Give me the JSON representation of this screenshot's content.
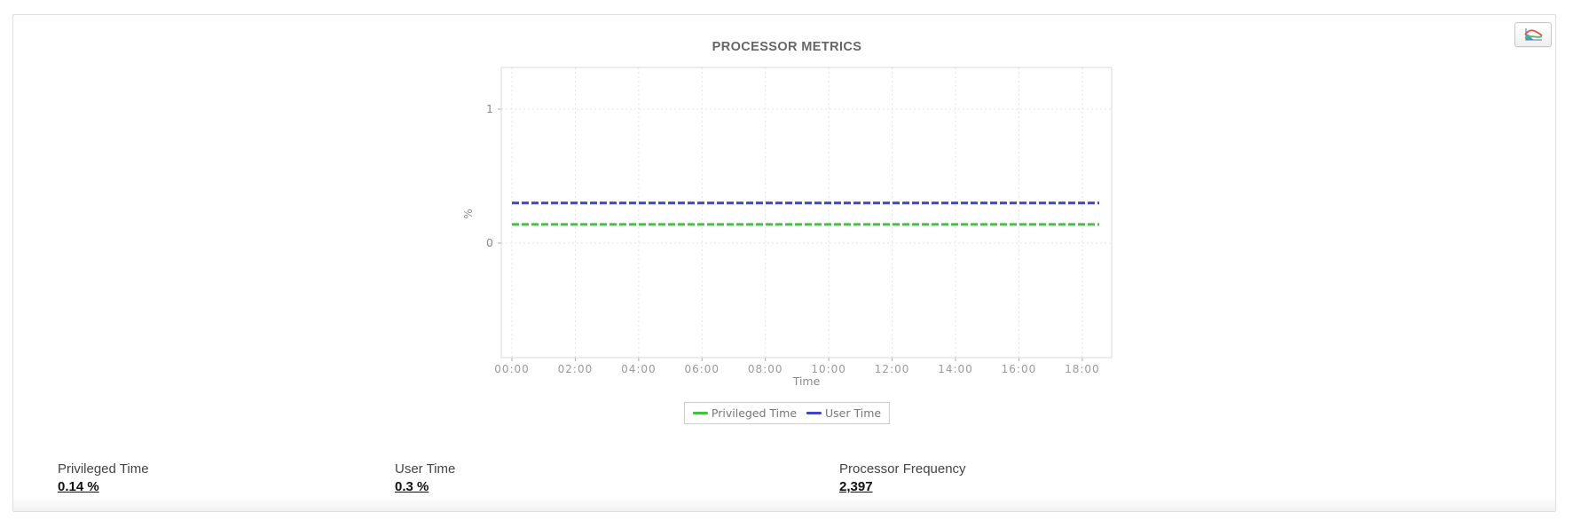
{
  "widget": {
    "title": "PROCESSOR METRICS",
    "footer_stats": [
      {
        "label": "Privileged Time",
        "value": "0.14 %"
      },
      {
        "label": "User Time",
        "value": "0.3 %"
      },
      {
        "label": "Processor Frequency",
        "value": "2,397"
      }
    ]
  },
  "toolbar": {
    "chart_button_icon": "multi-series-chart-icon"
  },
  "chart_data": {
    "type": "line",
    "title": "PROCESSOR METRICS",
    "xlabel": "Time",
    "ylabel": "%",
    "x_ticks": [
      "00:00",
      "02:00",
      "04:00",
      "06:00",
      "08:00",
      "10:00",
      "12:00",
      "14:00",
      "16:00",
      "18:00"
    ],
    "y_ticks": [
      0,
      1
    ],
    "ylim": [
      -0.85,
      1.3
    ],
    "x_range_hours": [
      0,
      18.5
    ],
    "grid": "dashed",
    "legend_position": "bottom",
    "colors": {
      "privileged_time": "#41c241",
      "user_time": "#4343c6",
      "axis_text": "#999999",
      "gridline": "#e4e4e4",
      "plot_border": "#d9d9d9"
    },
    "series": [
      {
        "name": "Privileged Time",
        "color": "#41c241",
        "values": [
          0.14,
          0.14,
          0.14,
          0.14,
          0.14,
          0.14,
          0.14,
          0.14,
          0.14,
          0.14
        ]
      },
      {
        "name": "User Time",
        "color": "#4343c6",
        "values": [
          0.3,
          0.3,
          0.3,
          0.3,
          0.3,
          0.3,
          0.3,
          0.3,
          0.3,
          0.3
        ]
      }
    ]
  }
}
